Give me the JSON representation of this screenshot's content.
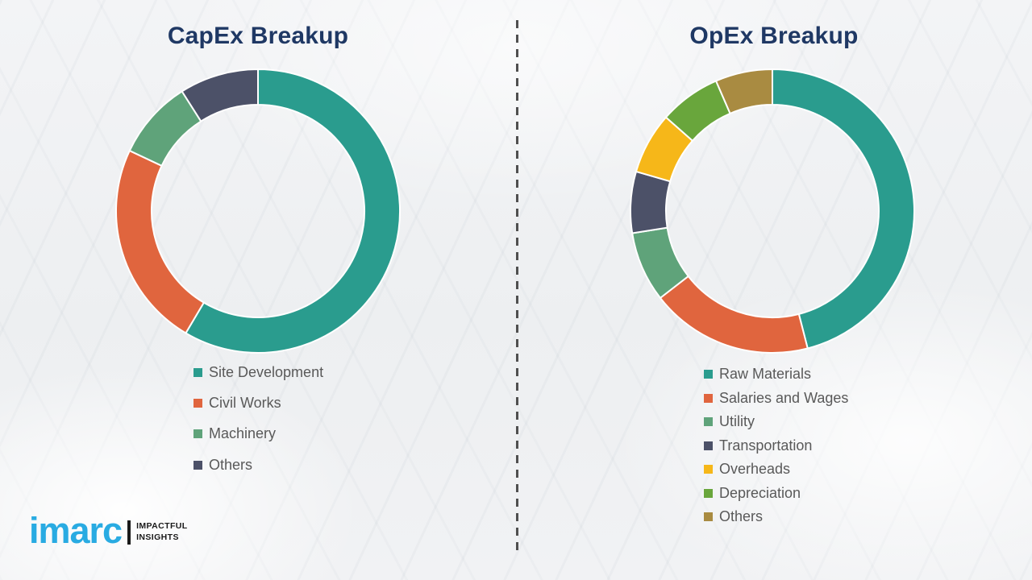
{
  "page": {
    "divider_style": "vertical dashed line separating the two charts",
    "background": "light gray washed-out industrial factory photo"
  },
  "chart_data": [
    {
      "type": "pie",
      "subtype": "donut",
      "title": "CapEx Breakup",
      "legend_position": "below-chart-left",
      "values_are": "percent share estimated from arc angles (no numeric labels shown)",
      "start_angle_deg": 0,
      "direction": "clockwise",
      "segments": [
        {
          "label": "Site Development",
          "value": 58.5,
          "color": "#2a9c8e"
        },
        {
          "label": "Civil Works",
          "value": 23.5,
          "color": "#e0653e"
        },
        {
          "label": "Machinery",
          "value": 9.0,
          "color": "#5fa37a"
        },
        {
          "label": "Others",
          "value": 9.0,
          "color": "#4c5168"
        }
      ]
    },
    {
      "type": "pie",
      "subtype": "donut",
      "title": "OpEx Breakup",
      "legend_position": "below-chart-left",
      "values_are": "percent share estimated from arc angles (no numeric labels shown)",
      "start_angle_deg": 0,
      "direction": "clockwise",
      "segments": [
        {
          "label": "Raw Materials",
          "value": 46.0,
          "color": "#2a9c8e"
        },
        {
          "label": "Salaries and Wages",
          "value": 18.5,
          "color": "#e0653e"
        },
        {
          "label": "Utility",
          "value": 8.0,
          "color": "#5fa37a"
        },
        {
          "label": "Transportation",
          "value": 7.0,
          "color": "#4c5168"
        },
        {
          "label": "Overheads",
          "value": 7.0,
          "color": "#f6b719"
        },
        {
          "label": "Depreciation",
          "value": 7.0,
          "color": "#69a63c"
        },
        {
          "label": "Others",
          "value": 6.5,
          "color": "#a98b41"
        }
      ]
    }
  ],
  "logo": {
    "brand": "imarc",
    "brand_color": "#29abe2",
    "tagline_line1": "IMPACTFUL",
    "tagline_line2": "INSIGHTS"
  },
  "colors": {
    "title_text": "#1f3864",
    "legend_text": "#595959",
    "divider": "#4f4f4f",
    "segment_separator": "#ffffff"
  }
}
